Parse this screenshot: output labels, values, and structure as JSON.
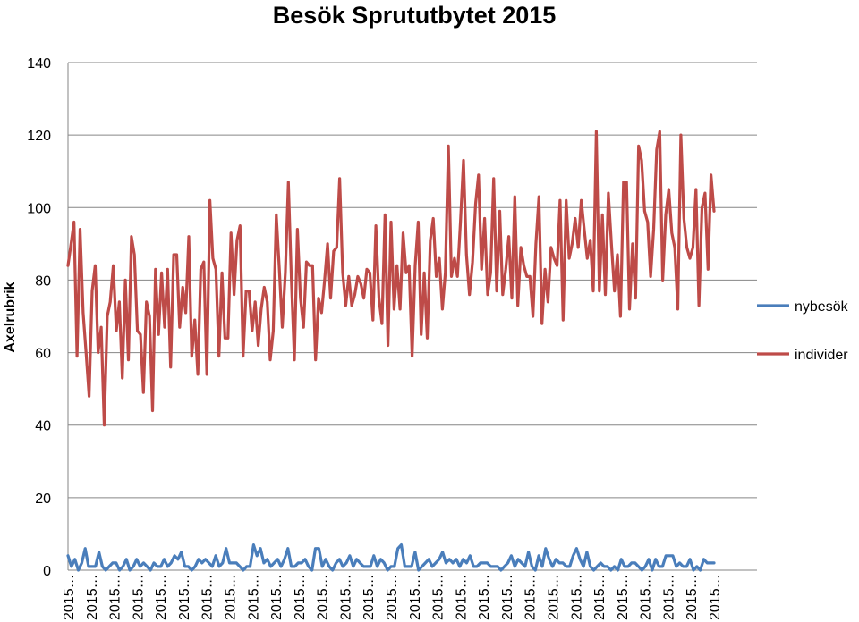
{
  "chart_data": {
    "type": "line",
    "title": "Besök Sprututbytet 2015",
    "xlabel": "",
    "ylabel": "Axelrubrik",
    "ylim": [
      0,
      140
    ],
    "yticks": [
      "0",
      "20",
      "40",
      "60",
      "80",
      "100",
      "120",
      "140"
    ],
    "xtick_label": "2015…",
    "xtick_count": 29,
    "grid": "horizontal",
    "legend_position": "right",
    "series": [
      {
        "name": "nybesök",
        "color": "#4a7ebb",
        "values": [
          4,
          1,
          3,
          0,
          2,
          6,
          1,
          1,
          1,
          5,
          1,
          0,
          1,
          2,
          2,
          0,
          1,
          3,
          0,
          1,
          3,
          1,
          2,
          1,
          0,
          2,
          1,
          1,
          3,
          1,
          2,
          4,
          3,
          5,
          1,
          1,
          0,
          1,
          3,
          2,
          3,
          2,
          1,
          4,
          1,
          2,
          6,
          2,
          2,
          2,
          1,
          0,
          1,
          1,
          7,
          4,
          6,
          2,
          3,
          1,
          2,
          3,
          1,
          3,
          6,
          1,
          1,
          2,
          2,
          3,
          1,
          0,
          6,
          6,
          1,
          3,
          1,
          0,
          2,
          3,
          1,
          2,
          4,
          1,
          3,
          2,
          1,
          1,
          1,
          4,
          1,
          3,
          2,
          0,
          1,
          1,
          6,
          7,
          1,
          1,
          1,
          5,
          0,
          1,
          2,
          3,
          1,
          2,
          3,
          5,
          2,
          3,
          2,
          3,
          1,
          3,
          2,
          4,
          1,
          1,
          2,
          2,
          2,
          1,
          1,
          1,
          0,
          1,
          2,
          4,
          1,
          3,
          2,
          1,
          5,
          1,
          0,
          4,
          1,
          6,
          3,
          1,
          3,
          2,
          2,
          1,
          1,
          4,
          6,
          3,
          1,
          5,
          1,
          0,
          1,
          2,
          1,
          1,
          0,
          1,
          0,
          3,
          1,
          1,
          2,
          2,
          1,
          0,
          1,
          3,
          0,
          3,
          1,
          1,
          4,
          4,
          4,
          1,
          2,
          1,
          1,
          3,
          0,
          1,
          0,
          3,
          2,
          2,
          2
        ]
      },
      {
        "name": "individer",
        "color": "#be4b48",
        "values": [
          84,
          90,
          96,
          59,
          94,
          71,
          60,
          48,
          77,
          84,
          60,
          67,
          40,
          70,
          74,
          84,
          66,
          74,
          53,
          80,
          58,
          92,
          87,
          66,
          65,
          49,
          74,
          70,
          44,
          83,
          65,
          82,
          67,
          83,
          56,
          87,
          87,
          67,
          78,
          71,
          92,
          59,
          69,
          54,
          83,
          85,
          54,
          102,
          86,
          83,
          59,
          82,
          64,
          64,
          93,
          76,
          91,
          95,
          59,
          77,
          77,
          66,
          74,
          62,
          72,
          78,
          74,
          58,
          66,
          98,
          83,
          67,
          82,
          107,
          80,
          58,
          94,
          75,
          67,
          85,
          84,
          84,
          58,
          75,
          71,
          80,
          90,
          75,
          88,
          89,
          108,
          82,
          73,
          81,
          73,
          76,
          81,
          79,
          75,
          83,
          82,
          69,
          95,
          75,
          68,
          98,
          62,
          96,
          72,
          84,
          72,
          93,
          82,
          84,
          59,
          84,
          96,
          65,
          82,
          64,
          91,
          97,
          81,
          86,
          72,
          82,
          117,
          81,
          86,
          81,
          96,
          113,
          87,
          76,
          85,
          101,
          109,
          83,
          97,
          76,
          82,
          108,
          77,
          99,
          76,
          83,
          92,
          75,
          103,
          73,
          89,
          84,
          81,
          81,
          70,
          90,
          103,
          68,
          83,
          74,
          89,
          86,
          84,
          102,
          69,
          102,
          86,
          90,
          97,
          89,
          102,
          94,
          86,
          91,
          77,
          121,
          77,
          98,
          76,
          104,
          90,
          77,
          87,
          70,
          107,
          107,
          72,
          90,
          75,
          117,
          113,
          99,
          96,
          81,
          94,
          116,
          121,
          80,
          98,
          105,
          93,
          89,
          72,
          120,
          97,
          89,
          86,
          89,
          105,
          73,
          100,
          104,
          83,
          109,
          99
        ]
      }
    ]
  }
}
